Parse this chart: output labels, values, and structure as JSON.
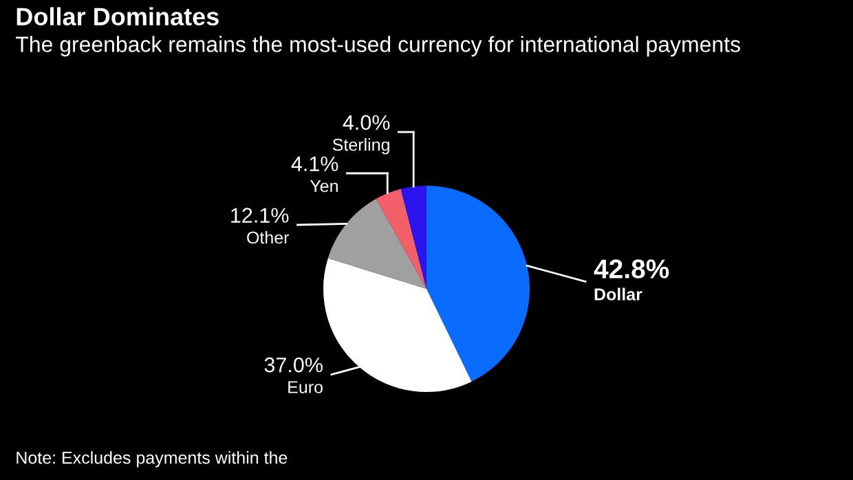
{
  "chart_data": {
    "type": "pie",
    "title": "Dollar Dominates",
    "subtitle": "The greenback remains the most-used currency for international payments",
    "categories": [
      "Dollar",
      "Euro",
      "Other",
      "Yen",
      "Sterling"
    ],
    "values": [
      42.8,
      37.0,
      12.1,
      4.1,
      4.0
    ],
    "colors": [
      "#0a6cff",
      "#ffffff",
      "#a0a0a0",
      "#f4606a",
      "#2a14f0"
    ],
    "value_labels": [
      "42.8%",
      "37.0%",
      "12.1%",
      "4.1%",
      "4.0%"
    ],
    "legend": false,
    "annotations": [
      "Note: Excludes payments within the"
    ]
  }
}
